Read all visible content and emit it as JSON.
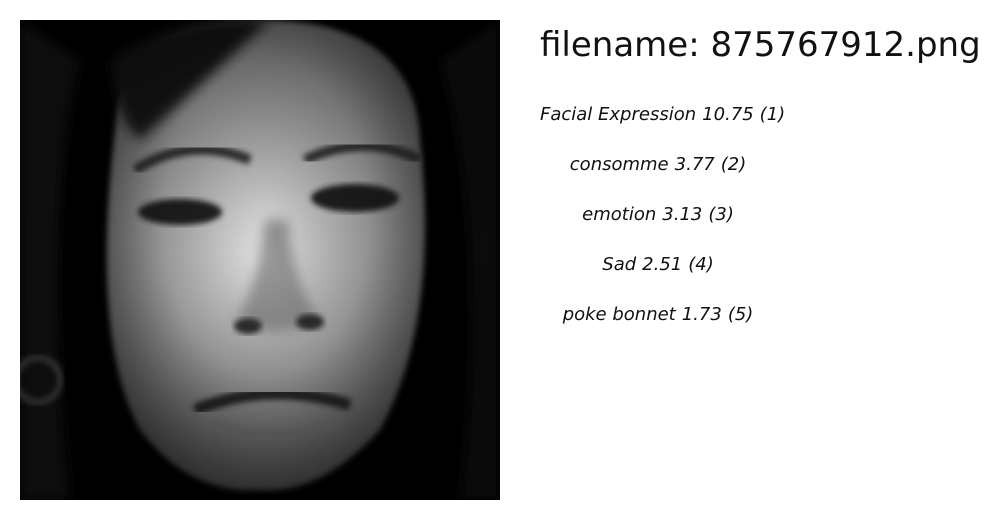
{
  "filename": {
    "prefix": "filename:",
    "value": "875767912.png"
  },
  "labels": [
    {
      "name": "Facial Expression",
      "score": "10.75",
      "rank": "(1)"
    },
    {
      "name": "consomme",
      "score": "3.77",
      "rank": "(2)"
    },
    {
      "name": "emotion",
      "score": "3.13",
      "rank": "(3)"
    },
    {
      "name": "Sad",
      "score": "2.51",
      "rank": "(4)"
    },
    {
      "name": "poke bonnet",
      "score": "1.73",
      "rank": "(5)"
    }
  ],
  "image": {
    "subject": "grayscale face close-up",
    "colors": {
      "background": "#000000",
      "skin_light": "#e2e2e2",
      "skin_dark": "#6f6f6f"
    }
  }
}
